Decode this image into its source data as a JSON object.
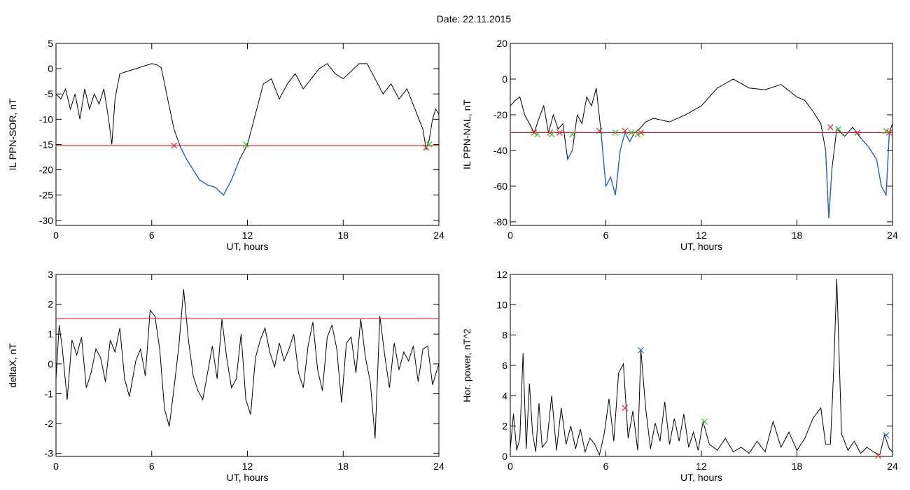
{
  "page": {
    "title": "Date:  22.11.2015"
  },
  "colors": {
    "trace": "#000000",
    "threshold": "#ff0000",
    "highlight": "#1f5fd0",
    "marker_red": "#e03030",
    "marker_green": "#30c030",
    "marker_blue": "#2070c0"
  },
  "chart_data": [
    {
      "type": "line",
      "xlabel": "UT, hours",
      "ylabel": "IL PPN-SOR, nT",
      "xlim": [
        0,
        24
      ],
      "ylim": [
        -31,
        5
      ],
      "xticks": [
        0,
        6,
        12,
        18,
        24
      ],
      "yticks": [
        5,
        0,
        -5,
        -10,
        -15,
        -20,
        -25,
        -30
      ],
      "threshold": -15.2,
      "series": [
        {
          "x": [
            0,
            0.3,
            0.6,
            0.9,
            1.2,
            1.5,
            1.8,
            2.1,
            2.4,
            2.7,
            3.0,
            3.3,
            3.5,
            3.7,
            4.0,
            4.5,
            5.0,
            5.5,
            6.0,
            6.3,
            6.6,
            7.0,
            7.4,
            7.8,
            8.2,
            8.6,
            9.0,
            9.5,
            10.0,
            10.5,
            11.0,
            11.5,
            12.0,
            12.5,
            13.0,
            13.5,
            14.0,
            14.5,
            15.0,
            15.5,
            16.0,
            16.5,
            17.0,
            17.5,
            18.0,
            18.5,
            19.0,
            19.5,
            20.0,
            20.5,
            21.0,
            21.5,
            22.0,
            22.5,
            23.0,
            23.2,
            23.4,
            23.6,
            23.8,
            24.0
          ],
          "y": [
            -5,
            -6,
            -4,
            -8,
            -5,
            -10,
            -4,
            -8,
            -5,
            -7,
            -4,
            -10,
            -15,
            -6,
            -1,
            -0.5,
            0,
            0.5,
            1,
            0.8,
            0.2,
            -6,
            -12,
            -15.5,
            -18,
            -20,
            -22,
            -23,
            -23.5,
            -25,
            -22,
            -18,
            -15,
            -9,
            -3,
            -2,
            -6,
            -3,
            -1,
            -4,
            -2,
            0,
            1,
            -1,
            -2,
            -0.5,
            1,
            1,
            -2,
            -5,
            -3,
            -6,
            -4,
            -8,
            -12,
            -16,
            -14,
            -10,
            -8,
            -9
          ]
        }
      ],
      "markers": [
        {
          "x": 7.4,
          "y": -15.2,
          "color": "red"
        },
        {
          "x": 11.9,
          "y": -15.0,
          "color": "green"
        },
        {
          "x": 23.2,
          "y": -15.6,
          "color": "red"
        },
        {
          "x": 23.4,
          "y": -15.0,
          "color": "green"
        }
      ]
    },
    {
      "type": "line",
      "xlabel": "UT, hours",
      "ylabel": "IL PPN-NAL, nT",
      "xlim": [
        0,
        24
      ],
      "ylim": [
        -82,
        20
      ],
      "xticks": [
        0,
        6,
        12,
        18,
        24
      ],
      "yticks": [
        20,
        0,
        -20,
        -40,
        -60,
        -80
      ],
      "threshold": -30,
      "series": [
        {
          "x": [
            0,
            0.3,
            0.6,
            0.9,
            1.2,
            1.5,
            1.8,
            2.1,
            2.4,
            2.7,
            3.0,
            3.3,
            3.6,
            3.9,
            4.2,
            4.5,
            4.8,
            5.1,
            5.4,
            5.7,
            6.0,
            6.3,
            6.6,
            6.9,
            7.2,
            7.5,
            7.8,
            8.1,
            8.5,
            9.0,
            10.0,
            11.0,
            12.0,
            13.0,
            14.0,
            15.0,
            16.0,
            17.0,
            18.0,
            18.5,
            19.0,
            19.5,
            19.8,
            20.0,
            20.2,
            20.5,
            21.0,
            21.5,
            22.0,
            22.5,
            23.0,
            23.3,
            23.6,
            23.8,
            24.0
          ],
          "y": [
            -15,
            -12,
            -10,
            -20,
            -25,
            -30,
            -22,
            -15,
            -30,
            -20,
            -28,
            -25,
            -45,
            -40,
            -20,
            -25,
            -10,
            -15,
            -5,
            -30,
            -60,
            -55,
            -65,
            -40,
            -30,
            -35,
            -30,
            -28,
            -24,
            -22,
            -24,
            -20,
            -15,
            -5,
            0,
            -5,
            -6,
            -3,
            -10,
            -12,
            -18,
            -25,
            -40,
            -78,
            -50,
            -28,
            -32,
            -27,
            -33,
            -38,
            -45,
            -60,
            -65,
            -30,
            -25
          ]
        }
      ],
      "markers": [
        {
          "x": 1.5,
          "y": -30,
          "color": "red"
        },
        {
          "x": 1.7,
          "y": -31,
          "color": "green"
        },
        {
          "x": 2.5,
          "y": -30,
          "color": "red"
        },
        {
          "x": 2.6,
          "y": -31,
          "color": "green"
        },
        {
          "x": 3.1,
          "y": -30,
          "color": "red"
        },
        {
          "x": 3.9,
          "y": -31,
          "color": "green"
        },
        {
          "x": 5.6,
          "y": -29,
          "color": "red"
        },
        {
          "x": 6.6,
          "y": -30,
          "color": "green"
        },
        {
          "x": 7.2,
          "y": -29,
          "color": "red"
        },
        {
          "x": 7.6,
          "y": -30,
          "color": "green"
        },
        {
          "x": 8.0,
          "y": -31,
          "color": "green"
        },
        {
          "x": 8.2,
          "y": -30,
          "color": "red"
        },
        {
          "x": 20.1,
          "y": -27,
          "color": "red"
        },
        {
          "x": 20.6,
          "y": -28,
          "color": "green"
        },
        {
          "x": 21.8,
          "y": -30,
          "color": "red"
        },
        {
          "x": 23.6,
          "y": -29,
          "color": "green"
        },
        {
          "x": 23.8,
          "y": -30,
          "color": "red"
        }
      ]
    },
    {
      "type": "line",
      "xlabel": "UT, hours",
      "ylabel": "deltaX, nT",
      "xlim": [
        0,
        24
      ],
      "ylim": [
        -3.1,
        3
      ],
      "xticks": [
        0,
        6,
        12,
        18,
        24
      ],
      "yticks": [
        3,
        2,
        1,
        0,
        -1,
        -2,
        -3
      ],
      "threshold": 1.52,
      "series": [
        {
          "x": [
            0,
            0.2,
            0.4,
            0.7,
            1.0,
            1.3,
            1.6,
            1.9,
            2.2,
            2.5,
            2.8,
            3.1,
            3.4,
            3.7,
            4.0,
            4.3,
            4.6,
            5.0,
            5.3,
            5.6,
            5.9,
            6.2,
            6.5,
            6.8,
            7.1,
            7.4,
            7.7,
            8.0,
            8.3,
            8.6,
            8.9,
            9.2,
            9.5,
            9.8,
            10.1,
            10.4,
            10.7,
            11.0,
            11.3,
            11.6,
            11.9,
            12.2,
            12.5,
            12.8,
            13.1,
            13.4,
            13.7,
            14.0,
            14.3,
            14.6,
            14.9,
            15.2,
            15.5,
            15.8,
            16.1,
            16.4,
            16.7,
            17.0,
            17.3,
            17.6,
            17.9,
            18.2,
            18.5,
            18.8,
            19.1,
            19.4,
            19.7,
            20.0,
            20.3,
            20.6,
            20.9,
            21.2,
            21.5,
            21.8,
            22.1,
            22.4,
            22.7,
            23.0,
            23.3,
            23.6,
            24.0
          ],
          "y": [
            -0.5,
            1.3,
            0.5,
            -1.2,
            0.8,
            0.3,
            0.9,
            -0.8,
            -0.3,
            0.5,
            0.2,
            -0.6,
            0.8,
            0.4,
            1.2,
            -0.5,
            -1.1,
            0.1,
            0.5,
            -0.4,
            1.8,
            1.6,
            0.5,
            -1.5,
            -2.1,
            -0.8,
            0.6,
            2.5,
            0.8,
            -0.4,
            -0.9,
            -1.2,
            -0.3,
            0.6,
            -0.5,
            1.5,
            0.2,
            -0.8,
            -0.5,
            1.0,
            -1.2,
            -1.7,
            0.2,
            0.8,
            1.2,
            0.4,
            -0.1,
            0.7,
            0.1,
            0.5,
            1.0,
            -0.3,
            -0.8,
            0.6,
            1.4,
            -0.2,
            -0.9,
            0.9,
            1.3,
            0.5,
            -1.3,
            0.7,
            0.9,
            -0.3,
            1.5,
            0.2,
            -0.6,
            -2.5,
            1.6,
            0.3,
            -0.8,
            0.7,
            -0.2,
            0.4,
            0.1,
            0.6,
            -0.6,
            0.5,
            0.6,
            -0.7,
            0.0
          ]
        }
      ]
    },
    {
      "type": "line",
      "xlabel": "UT, hours",
      "ylabel": "Hor. power, nT^2",
      "xlim": [
        0,
        24
      ],
      "ylim": [
        0,
        12
      ],
      "xticks": [
        0,
        6,
        12,
        18,
        24
      ],
      "yticks": [
        12,
        10,
        8,
        6,
        4,
        2,
        0
      ],
      "series": [
        {
          "x": [
            0,
            0.2,
            0.4,
            0.6,
            0.8,
            1.0,
            1.2,
            1.4,
            1.6,
            1.8,
            2.0,
            2.3,
            2.6,
            2.9,
            3.2,
            3.5,
            3.8,
            4.1,
            4.4,
            4.7,
            5.0,
            5.3,
            5.6,
            5.9,
            6.2,
            6.5,
            6.8,
            7.1,
            7.4,
            7.7,
            8.0,
            8.2,
            8.5,
            8.8,
            9.1,
            9.4,
            9.7,
            10.0,
            10.3,
            10.6,
            10.9,
            11.2,
            11.5,
            11.8,
            12.1,
            12.5,
            13.0,
            13.5,
            14.0,
            14.5,
            15.0,
            15.5,
            16.0,
            16.5,
            17.0,
            17.5,
            18.0,
            18.5,
            19.0,
            19.5,
            19.8,
            20.1,
            20.3,
            20.5,
            20.8,
            21.2,
            21.6,
            22.0,
            22.4,
            22.8,
            23.2,
            23.5,
            23.8,
            24.0
          ],
          "y": [
            0.5,
            2.8,
            0.4,
            1.2,
            6.8,
            0.5,
            4.8,
            1.5,
            0.3,
            3.5,
            0.6,
            1.0,
            4.0,
            0.4,
            3.2,
            0.8,
            2.0,
            0.5,
            1.8,
            0.3,
            1.2,
            0.8,
            0.1,
            1.5,
            3.8,
            1.0,
            5.5,
            6.1,
            1.2,
            3.0,
            0.4,
            7.0,
            3.2,
            0.5,
            2.2,
            1.0,
            3.6,
            0.8,
            2.5,
            1.0,
            2.8,
            0.6,
            1.6,
            0.4,
            2.3,
            0.8,
            0.4,
            1.2,
            0.3,
            0.6,
            0.2,
            1.0,
            0.3,
            2.3,
            0.6,
            1.6,
            0.4,
            1.2,
            2.5,
            3.2,
            0.8,
            0.8,
            5.5,
            11.7,
            1.5,
            0.4,
            1.0,
            0.2,
            0.6,
            0.3,
            0.1,
            1.4,
            0.5,
            0.3
          ]
        }
      ],
      "markers": [
        {
          "x": 7.2,
          "y": 3.2,
          "color": "red"
        },
        {
          "x": 8.2,
          "y": 7.0,
          "color": "blue"
        },
        {
          "x": 12.2,
          "y": 2.3,
          "color": "green"
        },
        {
          "x": 23.1,
          "y": 0.05,
          "color": "red"
        },
        {
          "x": 23.6,
          "y": 1.4,
          "color": "blue"
        }
      ]
    }
  ]
}
